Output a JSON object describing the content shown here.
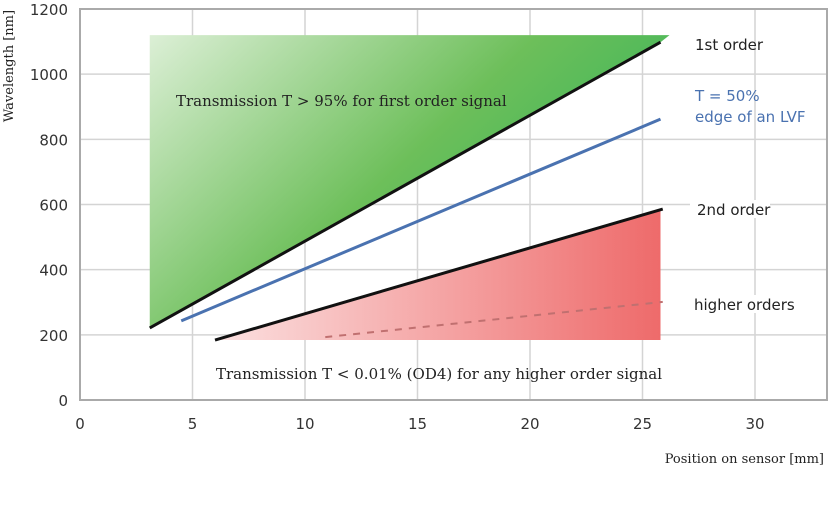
{
  "chart_data": {
    "type": "line",
    "xlabel": "Position on sensor [mm]",
    "ylabel": "Wavelength [nm]",
    "xlim": [
      0,
      33.2
    ],
    "ylim": [
      0,
      1200
    ],
    "x_ticks": [
      "0",
      "5",
      "10",
      "15",
      "20",
      "25",
      "30"
    ],
    "y_ticks": [
      "0",
      "200",
      "400",
      "600",
      "800",
      "1000",
      "1200"
    ],
    "grid": true,
    "series": [
      {
        "name": "1st order",
        "color": "#111111",
        "style": "solid",
        "x": [
          3.1,
          25.8
        ],
        "y": [
          221,
          1098
        ]
      },
      {
        "name": "T = 50% edge of an LVF",
        "label_lines": [
          "T = 50%",
          "edge of an LVF"
        ],
        "color": "#4a72b0",
        "style": "solid",
        "x": [
          4.5,
          25.8
        ],
        "y": [
          243,
          862
        ]
      },
      {
        "name": "2nd order",
        "color": "#111111",
        "style": "solid",
        "x": [
          6.0,
          25.9
        ],
        "y": [
          184,
          586
        ]
      },
      {
        "name": "higher orders",
        "color": "#c07070",
        "style": "dashed",
        "x": [
          10.9,
          25.9
        ],
        "y": [
          193,
          301
        ]
      }
    ],
    "regions": [
      {
        "name": "green",
        "color_from": "#dcefd6",
        "color_to": "#2fb35a",
        "points": [
          [
            3.1,
            1120
          ],
          [
            26.2,
            1120
          ],
          [
            25.8,
            1098
          ],
          [
            3.1,
            221
          ]
        ]
      },
      {
        "name": "red",
        "color_from": "#fbe0e0",
        "color_to": "#ee6a6a",
        "points": [
          [
            6.0,
            184
          ],
          [
            25.9,
            586
          ],
          [
            25.8,
            586
          ],
          [
            25.8,
            184
          ]
        ]
      }
    ],
    "annotations": [
      "Transmission T > 95% for first order signal",
      "Transmission T < 0.01% (OD4) for any higher order signal"
    ]
  }
}
